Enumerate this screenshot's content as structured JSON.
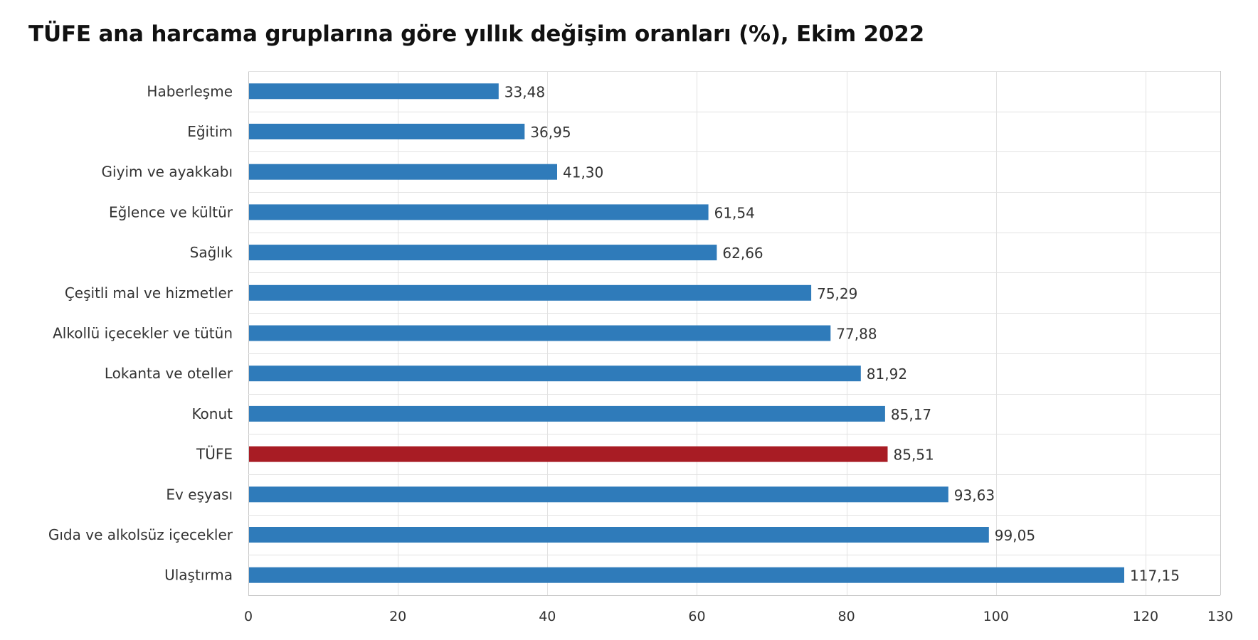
{
  "chart_data": {
    "type": "bar",
    "orientation": "horizontal",
    "title": "TÜFE ana harcama gruplarına göre yıllık değişim oranları (%), Ekim 2022",
    "xlabel": "",
    "ylabel": "",
    "xlim": [
      0,
      130
    ],
    "x_ticks": [
      0,
      20,
      40,
      60,
      80,
      100,
      120,
      130
    ],
    "grid": true,
    "legend": "none",
    "categories": [
      "Haberleşme",
      "Eğitim",
      "Giyim ve ayakkabı",
      "Eğlence ve kültür",
      "Sağlık",
      "Çeşitli mal ve hizmetler",
      "Alkollü içecekler ve tütün",
      "Lokanta ve oteller",
      "Konut",
      "TÜFE",
      "Ev eşyası",
      "Gıda ve alkolsüz içecekler",
      "Ulaştırma"
    ],
    "values": [
      33.48,
      36.95,
      41.3,
      61.54,
      62.66,
      75.29,
      77.88,
      81.92,
      85.17,
      85.51,
      93.63,
      99.05,
      117.15
    ],
    "value_labels": [
      "33,48",
      "36,95",
      "41,30",
      "61,54",
      "62,66",
      "75,29",
      "77,88",
      "81,92",
      "85,17",
      "85,51",
      "93,63",
      "99,05",
      "117,15"
    ],
    "colors": {
      "default_bar": "#2f7bba",
      "highlight_bar": "#a81c24",
      "grid": "#e2e2e2",
      "axis": "#c8c8c8"
    },
    "highlight_category": "TÜFE"
  }
}
